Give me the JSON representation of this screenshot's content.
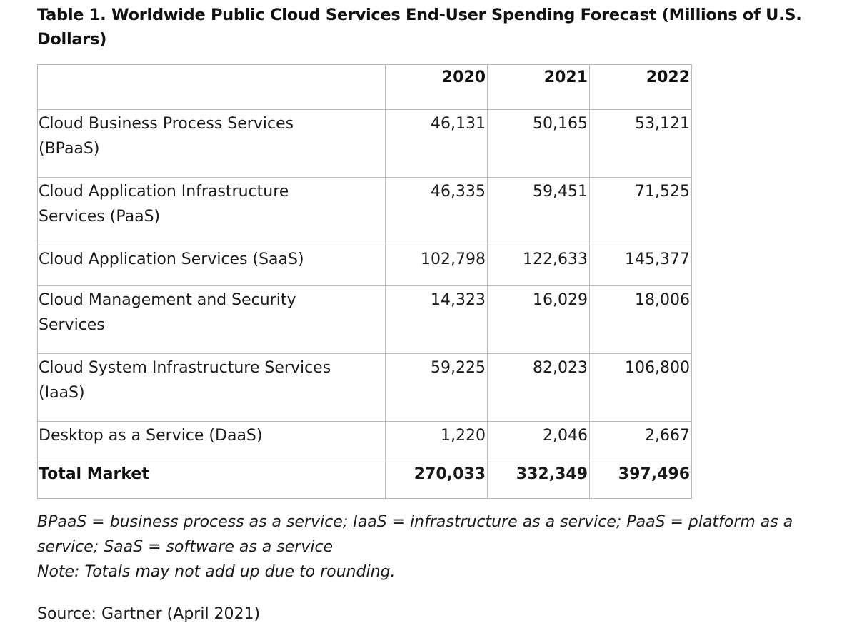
{
  "title": "Table 1. Worldwide Public Cloud Services End-User Spending Forecast (Millions of U.S. Dollars)",
  "columns": [
    "",
    "2020",
    "2021",
    "2022"
  ],
  "rows": [
    {
      "label": "Cloud Business Process Services (BPaaS)",
      "values": [
        "46,131",
        "50,165",
        "53,121"
      ]
    },
    {
      "label": "Cloud Application Infrastructure Services (PaaS)",
      "values": [
        "46,335",
        "59,451",
        "71,525"
      ]
    },
    {
      "label": "Cloud Application Services (SaaS)",
      "values": [
        "102,798",
        "122,633",
        "145,377"
      ]
    },
    {
      "label": "Cloud Management and Security Services",
      "values": [
        "14,323",
        "16,029",
        "18,006"
      ]
    },
    {
      "label": "Cloud System Infrastructure Services (IaaS)",
      "values": [
        "59,225",
        "82,023",
        "106,800"
      ]
    },
    {
      "label": "Desktop as a Service (DaaS)",
      "values": [
        "1,220",
        "2,046",
        "2,667"
      ]
    }
  ],
  "total": {
    "label": "Total Market",
    "values": [
      "270,033",
      "332,349",
      "397,496"
    ]
  },
  "footnote": "BPaaS = business process as a service; IaaS = infrastructure as a service; PaaS = platform as a service; SaaS = software as a service",
  "note": "Note: Totals may not add up due to rounding.",
  "source": "Source: Gartner (April 2021)"
}
